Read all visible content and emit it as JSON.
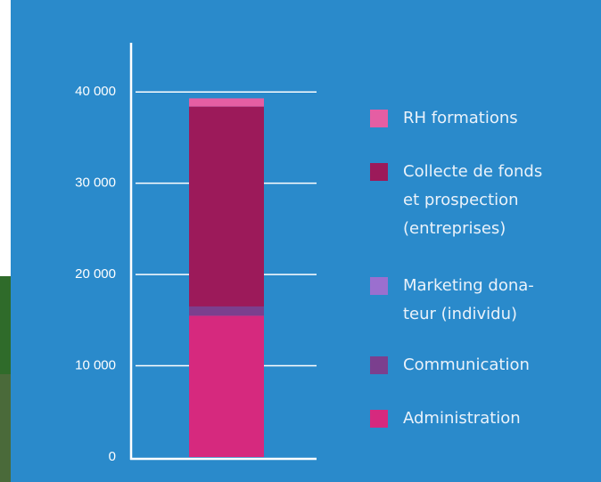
{
  "chart_data": {
    "type": "stacked_bar",
    "categories": [
      null
    ],
    "series": [
      {
        "name": "Administration",
        "color": "#d6297e",
        "values": [
          15500
        ]
      },
      {
        "name": "Communication",
        "color": "#7b3f8e",
        "values": [
          1000
        ]
      },
      {
        "name": "Marketing dona-\nteur (individu)",
        "color": "#9b6fcf",
        "values": [
          0
        ]
      },
      {
        "name": "Collecte de fonds\net prospection\n(entreprises)",
        "color": "#9c1a5a",
        "values": [
          21900
        ]
      },
      {
        "name": "RH formations",
        "color": "#e55ea3",
        "values": [
          900
        ]
      }
    ],
    "ylim": [
      0,
      45000
    ],
    "yticks": [
      0,
      {
        "value": 10000,
        "label": "10 000"
      },
      {
        "value": 20000,
        "label": "20 000"
      },
      {
        "value": 30000,
        "label": "30 000"
      },
      {
        "value": 40000,
        "label": "40 000"
      }
    ],
    "grid": true
  }
}
